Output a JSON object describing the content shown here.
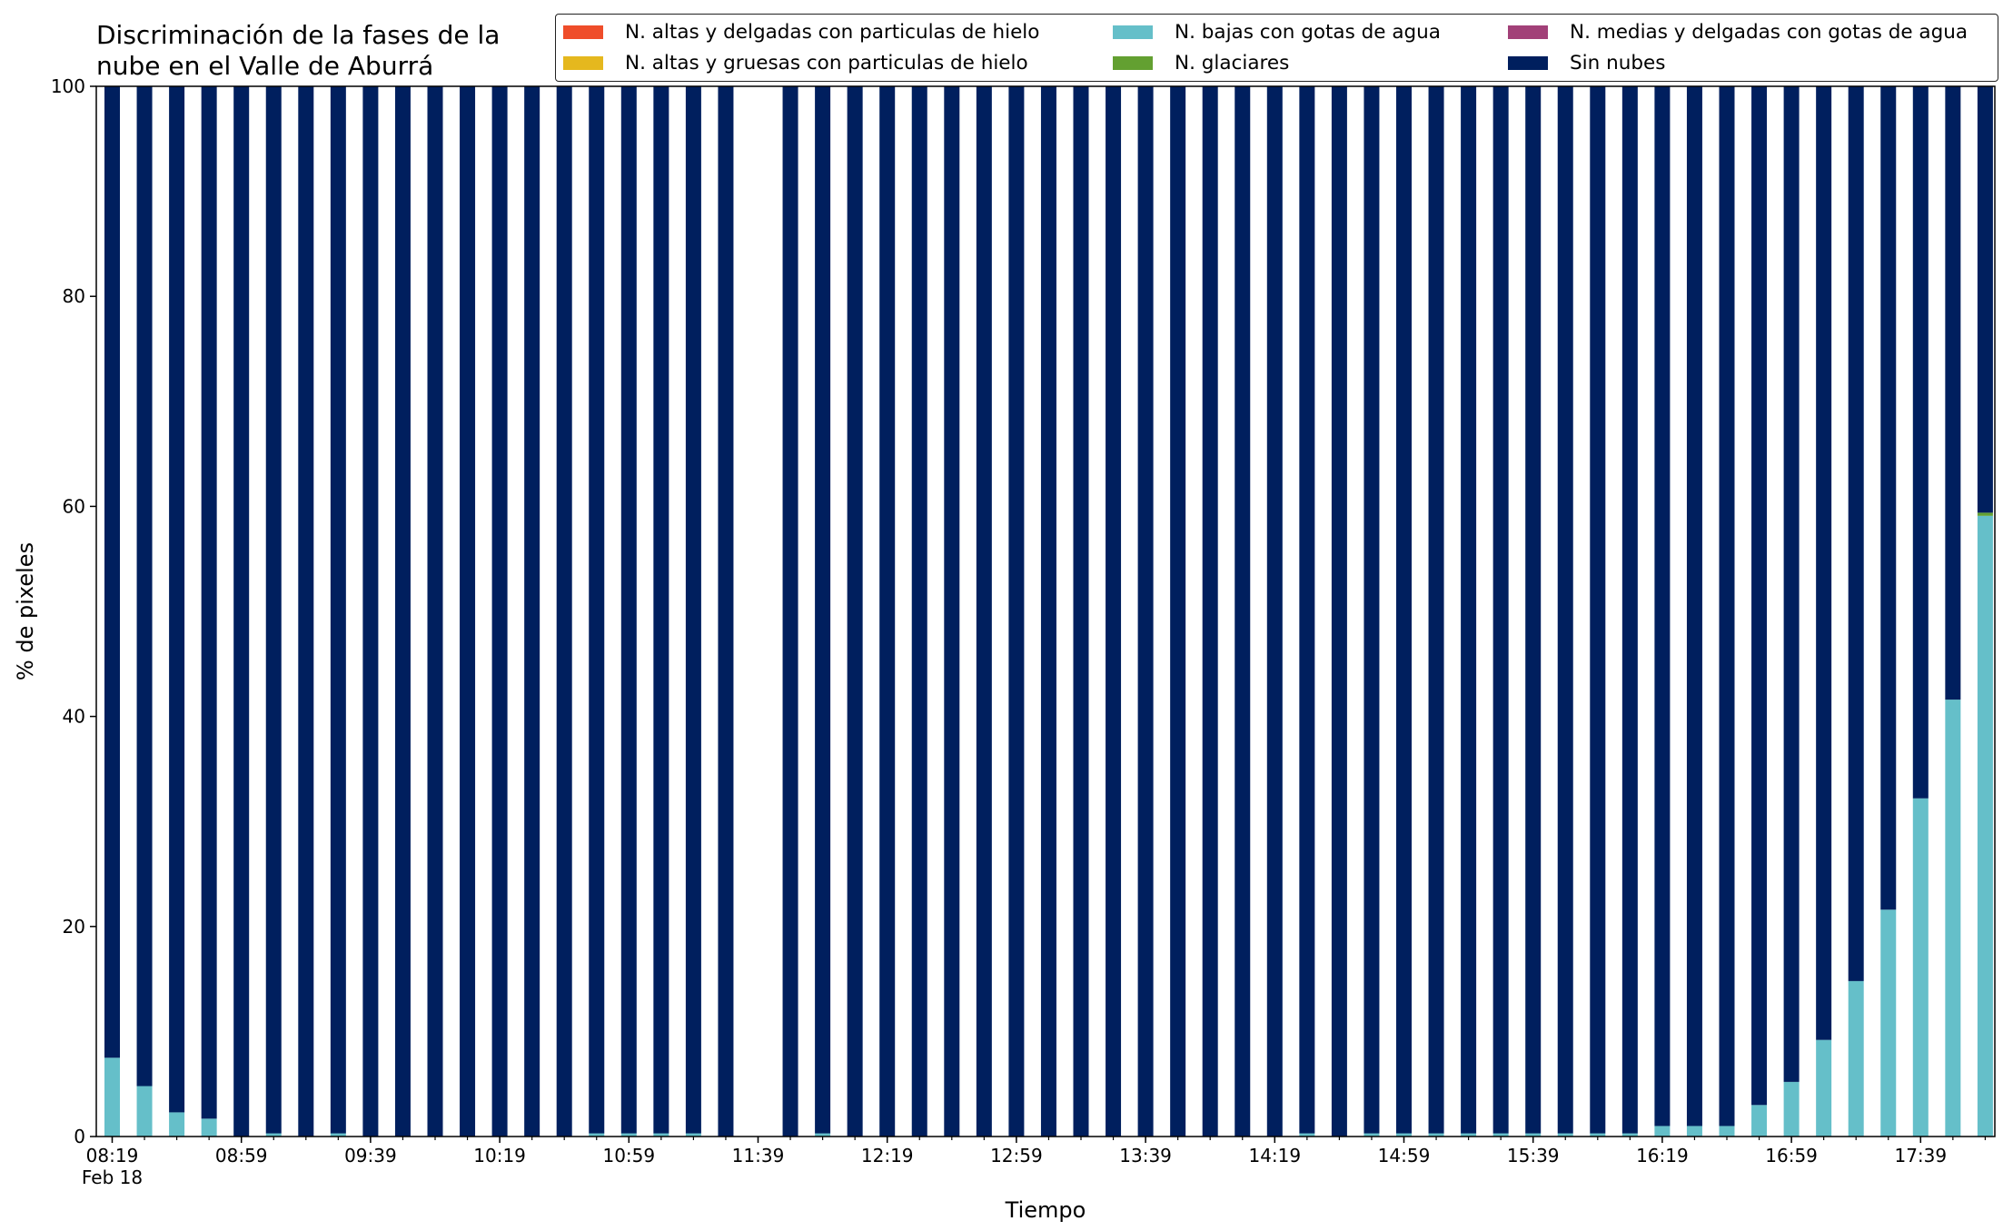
{
  "chart_data": {
    "type": "bar",
    "stacked": true,
    "title": "Discriminación de la fases de la\nnube en el Valle de Aburrá",
    "xlabel": "Tiempo",
    "ylabel": "% de pixeles",
    "ylim": [
      0,
      100
    ],
    "yticks": [
      "0",
      "20",
      "40",
      "60",
      "80",
      "100"
    ],
    "xticks": [
      {
        "time": "08:19",
        "label": "08:19",
        "sublabel": "Feb 18"
      },
      {
        "time": "08:59",
        "label": "08:59"
      },
      {
        "time": "09:39",
        "label": "09:39"
      },
      {
        "time": "10:19",
        "label": "10:19"
      },
      {
        "time": "10:59",
        "label": "10:59"
      },
      {
        "time": "11:39",
        "label": "11:39"
      },
      {
        "time": "12:19",
        "label": "12:19"
      },
      {
        "time": "12:59",
        "label": "12:59"
      },
      {
        "time": "13:39",
        "label": "13:39"
      },
      {
        "time": "14:19",
        "label": "14:19"
      },
      {
        "time": "14:59",
        "label": "14:59"
      },
      {
        "time": "15:39",
        "label": "15:39"
      },
      {
        "time": "16:19",
        "label": "16:19"
      },
      {
        "time": "16:59",
        "label": "16:59"
      },
      {
        "time": "17:39",
        "label": "17:39"
      }
    ],
    "grid": false,
    "legend_position": "top-right",
    "x": [
      "08:19",
      "08:29",
      "08:39",
      "08:49",
      "08:59",
      "09:09",
      "09:19",
      "09:29",
      "09:39",
      "09:49",
      "09:59",
      "10:09",
      "10:19",
      "10:29",
      "10:39",
      "10:49",
      "10:59",
      "11:09",
      "11:19",
      "11:29",
      "11:39",
      "11:49",
      "11:59",
      "12:09",
      "12:19",
      "12:29",
      "12:39",
      "12:49",
      "12:59",
      "13:09",
      "13:19",
      "13:29",
      "13:39",
      "13:49",
      "13:59",
      "14:09",
      "14:19",
      "14:29",
      "14:39",
      "14:49",
      "14:59",
      "15:09",
      "15:19",
      "15:29",
      "15:39",
      "15:49",
      "15:59",
      "16:09",
      "16:19",
      "16:29",
      "16:39",
      "16:49",
      "16:59",
      "17:09",
      "17:19",
      "17:29",
      "17:39",
      "17:49",
      "17:59"
    ],
    "series": [
      {
        "name": "N. altas y delgadas con particulas de hielo",
        "color": "#ef4d2a",
        "values": [
          0,
          0,
          0,
          0,
          0,
          0,
          0,
          0,
          0,
          0,
          0,
          0,
          0,
          0,
          0,
          0,
          0,
          0,
          0,
          0,
          null,
          0,
          0,
          0,
          0,
          0,
          0,
          0,
          0,
          0,
          0,
          0,
          0,
          0,
          0,
          0,
          0,
          0,
          0,
          0,
          0,
          0,
          0,
          0,
          0,
          0,
          0,
          0,
          0,
          0,
          0,
          0,
          0,
          0,
          0,
          0,
          0,
          0,
          0
        ]
      },
      {
        "name": "N. altas y gruesas con particulas de hielo",
        "color": "#e5b81e",
        "values": [
          0,
          0,
          0,
          0,
          0,
          0,
          0,
          0,
          0,
          0,
          0,
          0,
          0,
          0,
          0,
          0,
          0,
          0,
          0,
          0,
          null,
          0,
          0,
          0,
          0,
          0,
          0,
          0,
          0,
          0,
          0,
          0,
          0,
          0,
          0,
          0,
          0,
          0,
          0,
          0,
          0,
          0,
          0,
          0,
          0,
          0,
          0,
          0,
          0,
          0,
          0,
          0,
          0,
          0,
          0,
          0,
          0,
          0,
          0
        ]
      },
      {
        "name": "N. bajas con gotas de agua",
        "color": "#65bfc9",
        "values": [
          7.5,
          4.8,
          2.3,
          1.7,
          0,
          0.3,
          0,
          0.3,
          0,
          0,
          0,
          0,
          0,
          0,
          0,
          0.3,
          0.3,
          0.3,
          0.3,
          0,
          null,
          0,
          0.3,
          0,
          0,
          0,
          0,
          0,
          0,
          0,
          0,
          0,
          0,
          0,
          0,
          0,
          0,
          0.3,
          0,
          0.3,
          0.3,
          0.3,
          0.3,
          0.3,
          0.3,
          0.3,
          0.3,
          0.3,
          1,
          1,
          1,
          3,
          5.2,
          9.2,
          14.8,
          21.6,
          32.2,
          41.6,
          59.1
        ]
      },
      {
        "name": "N. glaciares",
        "color": "#63a031",
        "values": [
          0,
          0,
          0,
          0,
          0,
          0,
          0,
          0,
          0,
          0,
          0,
          0,
          0,
          0,
          0,
          0,
          0,
          0,
          0,
          0,
          null,
          0,
          0,
          0,
          0,
          0,
          0,
          0,
          0,
          0,
          0,
          0,
          0,
          0,
          0,
          0,
          0,
          0,
          0,
          0,
          0,
          0,
          0,
          0,
          0,
          0,
          0,
          0,
          0,
          0,
          0,
          0,
          0,
          0,
          0,
          0,
          0,
          0,
          0.3
        ]
      },
      {
        "name": "N. medias y delgadas con gotas de agua",
        "color": "#a24078",
        "values": [
          0,
          0,
          0,
          0,
          0,
          0,
          0,
          0,
          0,
          0,
          0,
          0,
          0,
          0,
          0,
          0,
          0,
          0,
          0,
          0,
          null,
          0,
          0,
          0,
          0,
          0,
          0,
          0,
          0,
          0,
          0,
          0,
          0,
          0,
          0,
          0,
          0,
          0,
          0,
          0,
          0,
          0,
          0,
          0,
          0,
          0,
          0,
          0,
          0,
          0,
          0,
          0,
          0,
          0,
          0,
          0,
          0,
          0,
          0
        ]
      },
      {
        "name": "Sin nubes",
        "color": "#001f5e",
        "values": [
          92.5,
          95.2,
          97.7,
          98.3,
          100,
          99.7,
          100,
          99.7,
          100,
          100,
          100,
          100,
          100,
          100,
          100,
          99.7,
          99.7,
          99.7,
          99.7,
          100,
          null,
          100,
          99.7,
          100,
          100,
          100,
          100,
          100,
          100,
          100,
          100,
          100,
          100,
          100,
          100,
          100,
          100,
          99.7,
          100,
          99.7,
          99.7,
          99.7,
          99.7,
          99.7,
          99.7,
          99.7,
          99.7,
          99.7,
          99,
          99,
          99,
          97,
          94.8,
          90.8,
          85.2,
          78.4,
          67.8,
          58.4,
          40.6
        ]
      }
    ]
  }
}
